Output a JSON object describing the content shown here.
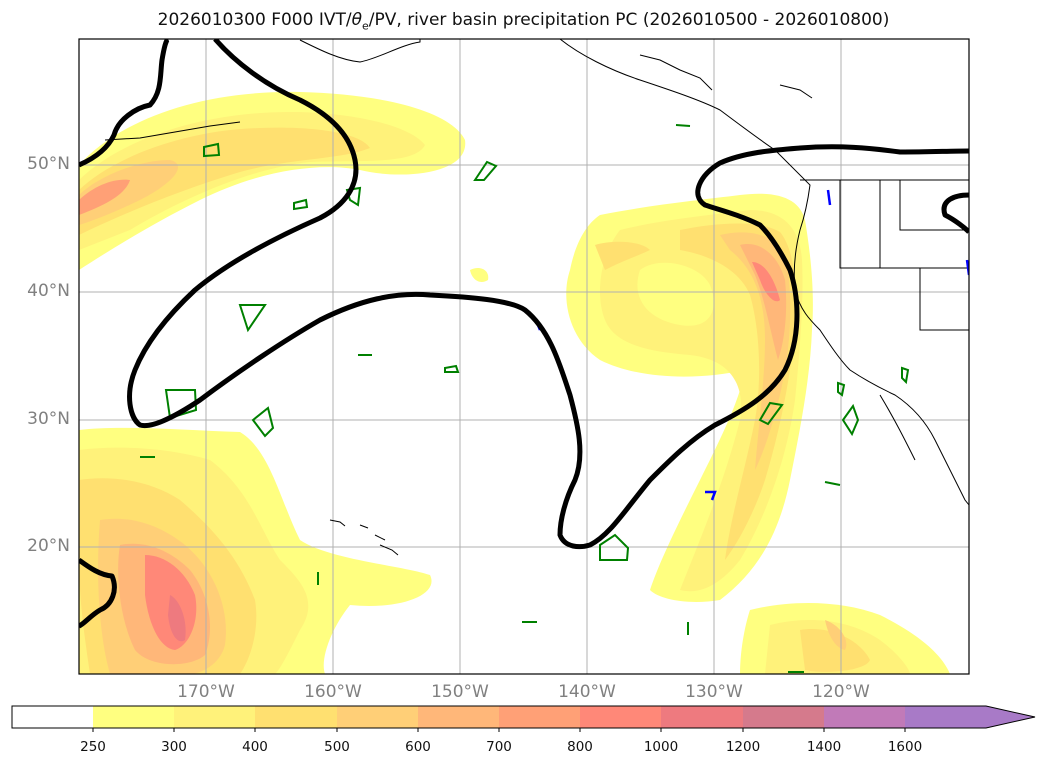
{
  "title": {
    "prefix": "2026010300 F000 IVT/",
    "theta": "θ",
    "sub": "e",
    "suffix": "/PV, river basin precipitation PC (2026010500 - 2026010800)"
  },
  "map": {
    "projection": "PlateCarree",
    "lon_range": [
      -180,
      -110
    ],
    "lat_range": [
      10,
      60
    ],
    "lat_labels": [
      "50°N",
      "40°N",
      "30°N",
      "20°N"
    ],
    "lon_labels": [
      "170°W",
      "160°W",
      "150°W",
      "140°W",
      "130°W",
      "120°W"
    ],
    "colors": {
      "pv_contour": "#000000",
      "precip_pc": "#008000",
      "theta_e_marker": "#0000ff",
      "gridline": "#b0b0b0"
    }
  },
  "colorbar": {
    "levels": [
      "250",
      "300",
      "400",
      "500",
      "600",
      "700",
      "800",
      "1000",
      "1200",
      "1400",
      "1600"
    ],
    "colors": [
      "#ffffff",
      "#ffff80",
      "#fff27a",
      "#ffe070",
      "#ffcf77",
      "#ffb779",
      "#ffa076",
      "#ff8878",
      "#ee7a7f",
      "#d57a8c",
      "#c17ab8",
      "#a87ac7"
    ],
    "extend": "max"
  }
}
